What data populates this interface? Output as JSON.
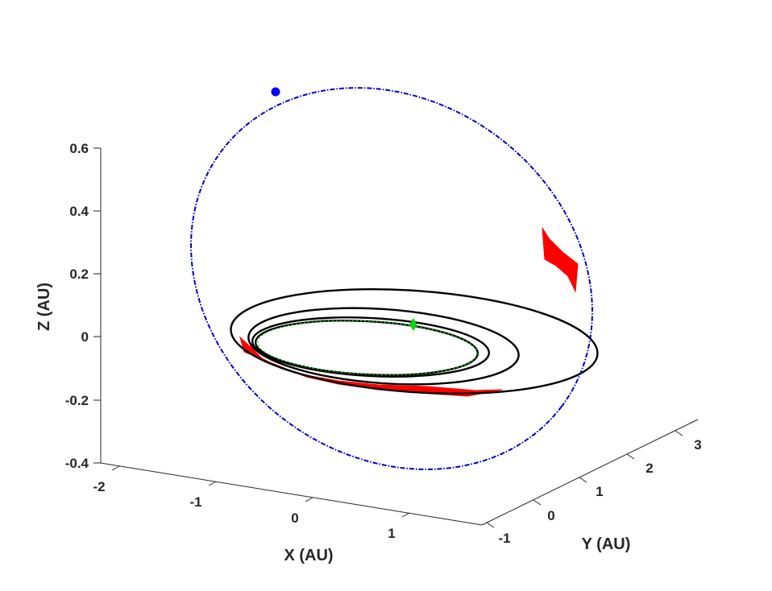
{
  "chart_data": {
    "type": "line3d",
    "xlabel": "X (AU)",
    "ylabel": "Y (AU)",
    "zlabel": "Z (AU)",
    "x_ticks": [
      "-2",
      "-1",
      "0",
      "1"
    ],
    "y_ticks": [
      "-1",
      "0",
      "1",
      "2",
      "3"
    ],
    "z_ticks": [
      "0.6",
      "0.4",
      "0.2",
      "0",
      "-0.2",
      "-0.4"
    ],
    "xlim": [
      -2.2,
      1.8
    ],
    "ylim": [
      -1.2,
      3.5
    ],
    "zlim": [
      -0.4,
      0.6
    ],
    "grid": false,
    "colors": {
      "target_orbit": "#0000c8",
      "transfer": "#000000",
      "thrust": "#ff0000",
      "departure": "#00e000",
      "axes": "#262626"
    }
  }
}
